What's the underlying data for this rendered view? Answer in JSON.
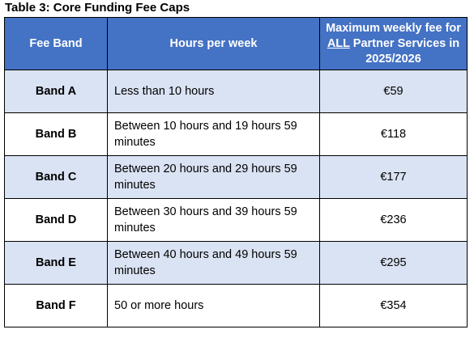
{
  "caption": "Table 3: Core Funding Fee Caps",
  "colors": {
    "header_background": "#4472c4",
    "header_text": "#ffffff",
    "shaded_row": "#dae3f3",
    "plain_row": "#ffffff",
    "border": "#000000"
  },
  "headers": {
    "fee_band": "Fee Band",
    "hours_per_week": "Hours per week",
    "max_fee_part1": "Maximum weekly fee for",
    "max_fee_emph": "ALL",
    "max_fee_part2": "Partner Services in 2025/2026"
  },
  "rows": [
    {
      "band": "Band A",
      "hours": "Less than 10 hours",
      "fee": "€59"
    },
    {
      "band": "Band B",
      "hours": "Between 10 hours and 19 hours 59 minutes",
      "fee": "€118"
    },
    {
      "band": "Band C",
      "hours": "Between 20 hours and 29 hours 59 minutes",
      "fee": "€177"
    },
    {
      "band": "Band D",
      "hours": "Between 30 hours and 39 hours 59 minutes",
      "fee": "€236"
    },
    {
      "band": "Band E",
      "hours": "Between 40 hours and 49 hours 59 minutes",
      "fee": "€295"
    },
    {
      "band": "Band F",
      "hours": "50 or more hours",
      "fee": "€354"
    }
  ]
}
